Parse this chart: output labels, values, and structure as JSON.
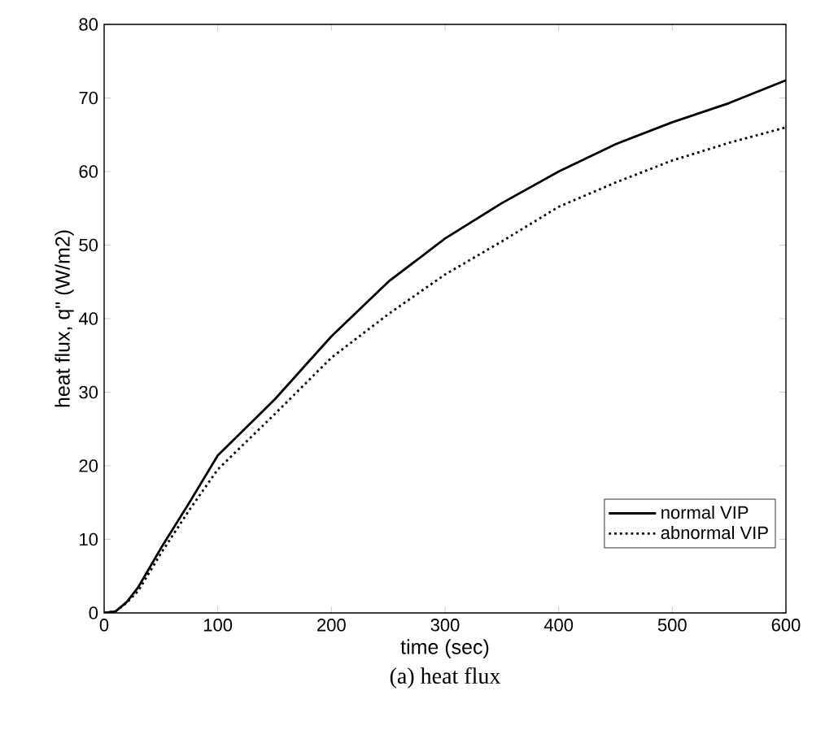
{
  "chart_data": {
    "type": "line",
    "xlabel": "time (sec)",
    "ylabel": "heat flux, q\" (W/m2)",
    "annotations": [
      "(a)  heat  flux"
    ],
    "xlim": [
      0,
      600
    ],
    "ylim": [
      0,
      80
    ],
    "xticks": [
      0,
      100,
      200,
      300,
      400,
      500,
      600
    ],
    "yticks": [
      0,
      10,
      20,
      30,
      40,
      50,
      60,
      70,
      80
    ],
    "x": [
      0,
      10,
      20,
      30,
      50,
      75,
      100,
      150,
      200,
      250,
      300,
      350,
      400,
      450,
      500,
      550,
      600
    ],
    "legend": "bottom right",
    "grid": false,
    "marker": "none",
    "series": [
      {
        "name": "normal VIP",
        "color": "#000000",
        "line_style": "solid",
        "values": [
          0,
          0.2,
          1.5,
          3.5,
          8.8,
          15,
          21.4,
          29,
          37.6,
          45,
          50.9,
          55.7,
          60,
          63.7,
          66.7,
          69.3,
          72.4
        ]
      },
      {
        "name": "abnormal VIP",
        "color": "#000000",
        "line_style": "dotted",
        "values": [
          0,
          0.2,
          1.4,
          3,
          8.1,
          14,
          19.5,
          27,
          34.7,
          40.6,
          46,
          50.5,
          55.2,
          58.5,
          61.5,
          63.9,
          66
        ]
      }
    ]
  }
}
